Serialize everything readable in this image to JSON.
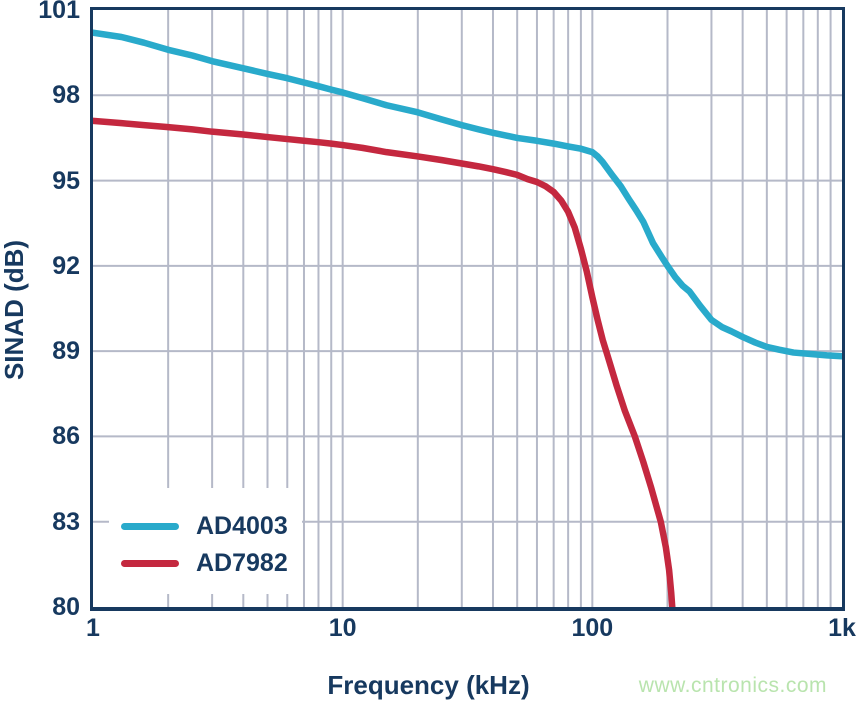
{
  "watermark": {
    "text": "www.cntronics.com",
    "color": "#b9e4ae"
  },
  "chart_data": {
    "type": "line",
    "title": "",
    "xlabel": "Frequency (kHz)",
    "ylabel": "SINAD (dB)",
    "x_scale": "log",
    "xlim": [
      1,
      1000
    ],
    "ylim": [
      80,
      101
    ],
    "grid": "horizontal major every 3 dB; vertical log decades with minors 2-9",
    "colors": {
      "navy": "#17395f",
      "grid": "#b5b9c8",
      "background": "#ffffff"
    },
    "x_ticks": [
      {
        "v": 1,
        "label": "1"
      },
      {
        "v": 10,
        "label": "10"
      },
      {
        "v": 100,
        "label": "100"
      },
      {
        "v": 1000,
        "label": "1k"
      }
    ],
    "y_ticks": [
      {
        "v": 101,
        "label": "101"
      },
      {
        "v": 98,
        "label": "98"
      },
      {
        "v": 95,
        "label": "95"
      },
      {
        "v": 92,
        "label": "92"
      },
      {
        "v": 89,
        "label": "89"
      },
      {
        "v": 86,
        "label": "86"
      },
      {
        "v": 83,
        "label": "83"
      },
      {
        "v": 80,
        "label": "80"
      }
    ],
    "legend": {
      "position": "inside-bottom-left"
    },
    "series": [
      {
        "name": "AD4003",
        "color": "#29aacb",
        "points": [
          [
            1,
            100.2
          ],
          [
            1.3,
            100.05
          ],
          [
            1.6,
            99.85
          ],
          [
            2,
            99.6
          ],
          [
            2.5,
            99.4
          ],
          [
            3,
            99.2
          ],
          [
            4,
            98.95
          ],
          [
            5,
            98.75
          ],
          [
            6,
            98.6
          ],
          [
            7,
            98.45
          ],
          [
            8,
            98.32
          ],
          [
            9,
            98.2
          ],
          [
            10,
            98.1
          ],
          [
            12,
            97.9
          ],
          [
            15,
            97.65
          ],
          [
            20,
            97.4
          ],
          [
            25,
            97.15
          ],
          [
            30,
            96.95
          ],
          [
            35,
            96.8
          ],
          [
            40,
            96.68
          ],
          [
            50,
            96.5
          ],
          [
            60,
            96.4
          ],
          [
            70,
            96.3
          ],
          [
            80,
            96.2
          ],
          [
            90,
            96.12
          ],
          [
            100,
            96.0
          ],
          [
            105,
            95.85
          ],
          [
            110,
            95.65
          ],
          [
            120,
            95.2
          ],
          [
            130,
            94.8
          ],
          [
            140,
            94.35
          ],
          [
            150,
            93.95
          ],
          [
            160,
            93.55
          ],
          [
            175,
            92.8
          ],
          [
            190,
            92.3
          ],
          [
            200,
            92.0
          ],
          [
            215,
            91.6
          ],
          [
            230,
            91.3
          ],
          [
            245,
            91.1
          ],
          [
            270,
            90.6
          ],
          [
            300,
            90.1
          ],
          [
            330,
            89.85
          ],
          [
            360,
            89.7
          ],
          [
            400,
            89.5
          ],
          [
            450,
            89.3
          ],
          [
            500,
            89.15
          ],
          [
            560,
            89.05
          ],
          [
            640,
            88.95
          ],
          [
            750,
            88.9
          ],
          [
            870,
            88.85
          ],
          [
            1000,
            88.82
          ]
        ]
      },
      {
        "name": "AD7982",
        "color": "#c4283f",
        "points": [
          [
            1,
            97.1
          ],
          [
            1.3,
            97.02
          ],
          [
            1.6,
            96.95
          ],
          [
            2,
            96.88
          ],
          [
            2.5,
            96.8
          ],
          [
            3,
            96.72
          ],
          [
            4,
            96.62
          ],
          [
            5,
            96.53
          ],
          [
            6,
            96.46
          ],
          [
            7,
            96.4
          ],
          [
            8,
            96.35
          ],
          [
            9,
            96.3
          ],
          [
            10,
            96.25
          ],
          [
            12,
            96.15
          ],
          [
            15,
            96.0
          ],
          [
            20,
            95.85
          ],
          [
            25,
            95.72
          ],
          [
            30,
            95.6
          ],
          [
            35,
            95.5
          ],
          [
            40,
            95.4
          ],
          [
            45,
            95.3
          ],
          [
            50,
            95.2
          ],
          [
            55,
            95.05
          ],
          [
            60,
            94.95
          ],
          [
            65,
            94.8
          ],
          [
            70,
            94.6
          ],
          [
            75,
            94.3
          ],
          [
            80,
            93.9
          ],
          [
            85,
            93.35
          ],
          [
            90,
            92.6
          ],
          [
            95,
            91.8
          ],
          [
            100,
            90.9
          ],
          [
            105,
            90.1
          ],
          [
            110,
            89.4
          ],
          [
            115,
            88.85
          ],
          [
            125,
            87.8
          ],
          [
            135,
            86.9
          ],
          [
            148,
            86.0
          ],
          [
            160,
            85.1
          ],
          [
            172,
            84.2
          ],
          [
            188,
            83.0
          ],
          [
            197,
            82.1
          ],
          [
            203,
            81.3
          ],
          [
            207,
            80.5
          ],
          [
            209,
            80.0
          ]
        ]
      }
    ]
  }
}
